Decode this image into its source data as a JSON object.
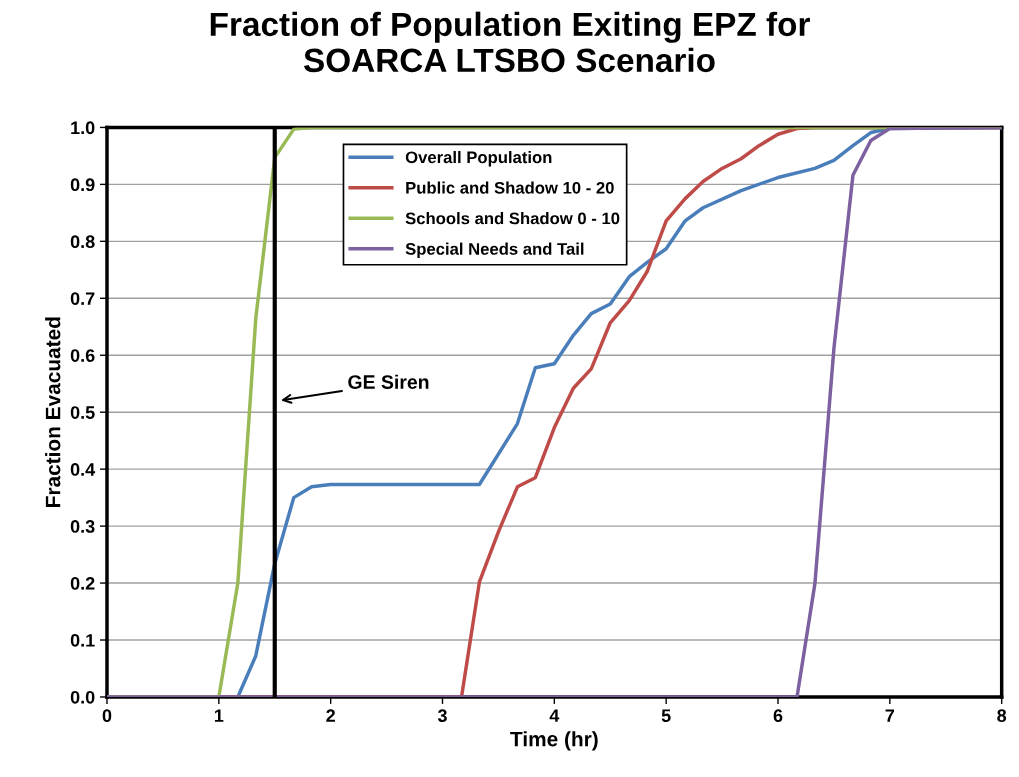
{
  "chart_data": {
    "type": "line",
    "title": "Fraction of Population Exiting EPZ for\nSOARCA LTSBO Scenario",
    "xlabel": "Time (hr)",
    "ylabel": "Fraction Evacuated",
    "xlim": [
      0,
      8
    ],
    "xticks": [
      0,
      1,
      2,
      3,
      4,
      5,
      6,
      7,
      8
    ],
    "ylim": [
      0,
      1
    ],
    "yticks": [
      {
        "value": 0,
        "label": "0.0"
      },
      {
        "value": 0.1,
        "label": "0.1"
      },
      {
        "value": 0.2,
        "label": "0.2"
      },
      {
        "value": 0.3,
        "label": "0.3"
      },
      {
        "value": 0.4,
        "label": "0.4"
      },
      {
        "value": 0.5,
        "label": "0.5"
      },
      {
        "value": 0.6,
        "label": "0.6"
      },
      {
        "value": 0.7,
        "label": "0.7"
      },
      {
        "value": 0.8,
        "label": "0.8"
      },
      {
        "value": 0.9,
        "label": "0.9"
      },
      {
        "value": 1,
        "label": "1.0"
      }
    ],
    "grid": "y",
    "legend": "top",
    "marker": "none",
    "line_style": "solid",
    "series": [
      {
        "name": "Overall Population",
        "color": "#4a7ebb",
        "x": [
          0,
          1.17,
          1.33,
          1.5,
          1.67,
          1.83,
          2.0,
          3.33,
          3.67,
          3.83,
          4.0,
          4.17,
          4.33,
          4.5,
          4.67,
          4.83,
          5.0,
          5.17,
          5.33,
          5.67,
          6.0,
          6.33,
          6.5,
          6.67,
          6.83,
          7.0,
          8.0
        ],
        "values": [
          0,
          0,
          0.072,
          0.234,
          0.35,
          0.369,
          0.373,
          0.373,
          0.48,
          0.578,
          0.585,
          0.635,
          0.673,
          0.69,
          0.738,
          0.763,
          0.787,
          0.836,
          0.859,
          0.889,
          0.912,
          0.928,
          0.942,
          0.968,
          0.991,
          0.998,
          1.0
        ]
      },
      {
        "name": "Public and Shadow 10 - 20",
        "color": "#be4b48",
        "x": [
          0,
          3.17,
          3.33,
          3.5,
          3.67,
          3.83,
          4.0,
          4.17,
          4.33,
          4.5,
          4.67,
          4.83,
          5.0,
          5.17,
          5.33,
          5.5,
          5.67,
          5.83,
          6.0,
          6.17,
          6.33,
          8.0
        ],
        "values": [
          0,
          0,
          0.202,
          0.29,
          0.369,
          0.385,
          0.473,
          0.542,
          0.576,
          0.657,
          0.696,
          0.747,
          0.836,
          0.875,
          0.905,
          0.928,
          0.945,
          0.968,
          0.988,
          0.998,
          1.0,
          1.0
        ]
      },
      {
        "name": "Schools and Shadow 0 - 10",
        "color": "#98b954",
        "x": [
          0,
          1.0,
          1.17,
          1.33,
          1.5,
          1.67,
          1.83,
          8.0
        ],
        "values": [
          0,
          0,
          0.2,
          0.664,
          0.947,
          0.997,
          1.0,
          1.0
        ]
      },
      {
        "name": "Special Needs and Tail",
        "color": "#7d60a0",
        "x": [
          0,
          6.17,
          6.33,
          6.5,
          6.67,
          6.83,
          7.0,
          8.0
        ],
        "values": [
          0,
          0,
          0.199,
          0.612,
          0.916,
          0.977,
          0.998,
          1.0
        ]
      }
    ],
    "ref_lines": [
      {
        "axis": "x",
        "value": 1.5,
        "label": "GE Siren",
        "color": "#000000",
        "line_style": "solid"
      }
    ]
  }
}
